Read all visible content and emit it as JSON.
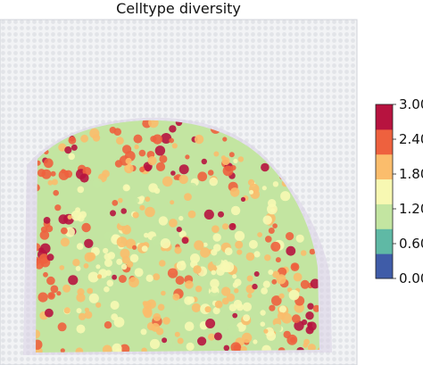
{
  "chart_data": {
    "type": "heatmap",
    "title": "Celltype diversity",
    "xlabel": "",
    "ylabel": "",
    "colorbar": {
      "min": 0.0,
      "max": 3.0,
      "ticks": [
        "0.00",
        "0.60",
        "1.20",
        "1.80",
        "2.40",
        "3.00"
      ],
      "colors": [
        "#3f5ca8",
        "#5fb9a5",
        "#c3e5a1",
        "#f7f8b2",
        "#fbbd6c",
        "#ee613e",
        "#b7133f"
      ]
    },
    "tissue_fill_level": 1.2,
    "background": "tissue image with spot grid"
  }
}
